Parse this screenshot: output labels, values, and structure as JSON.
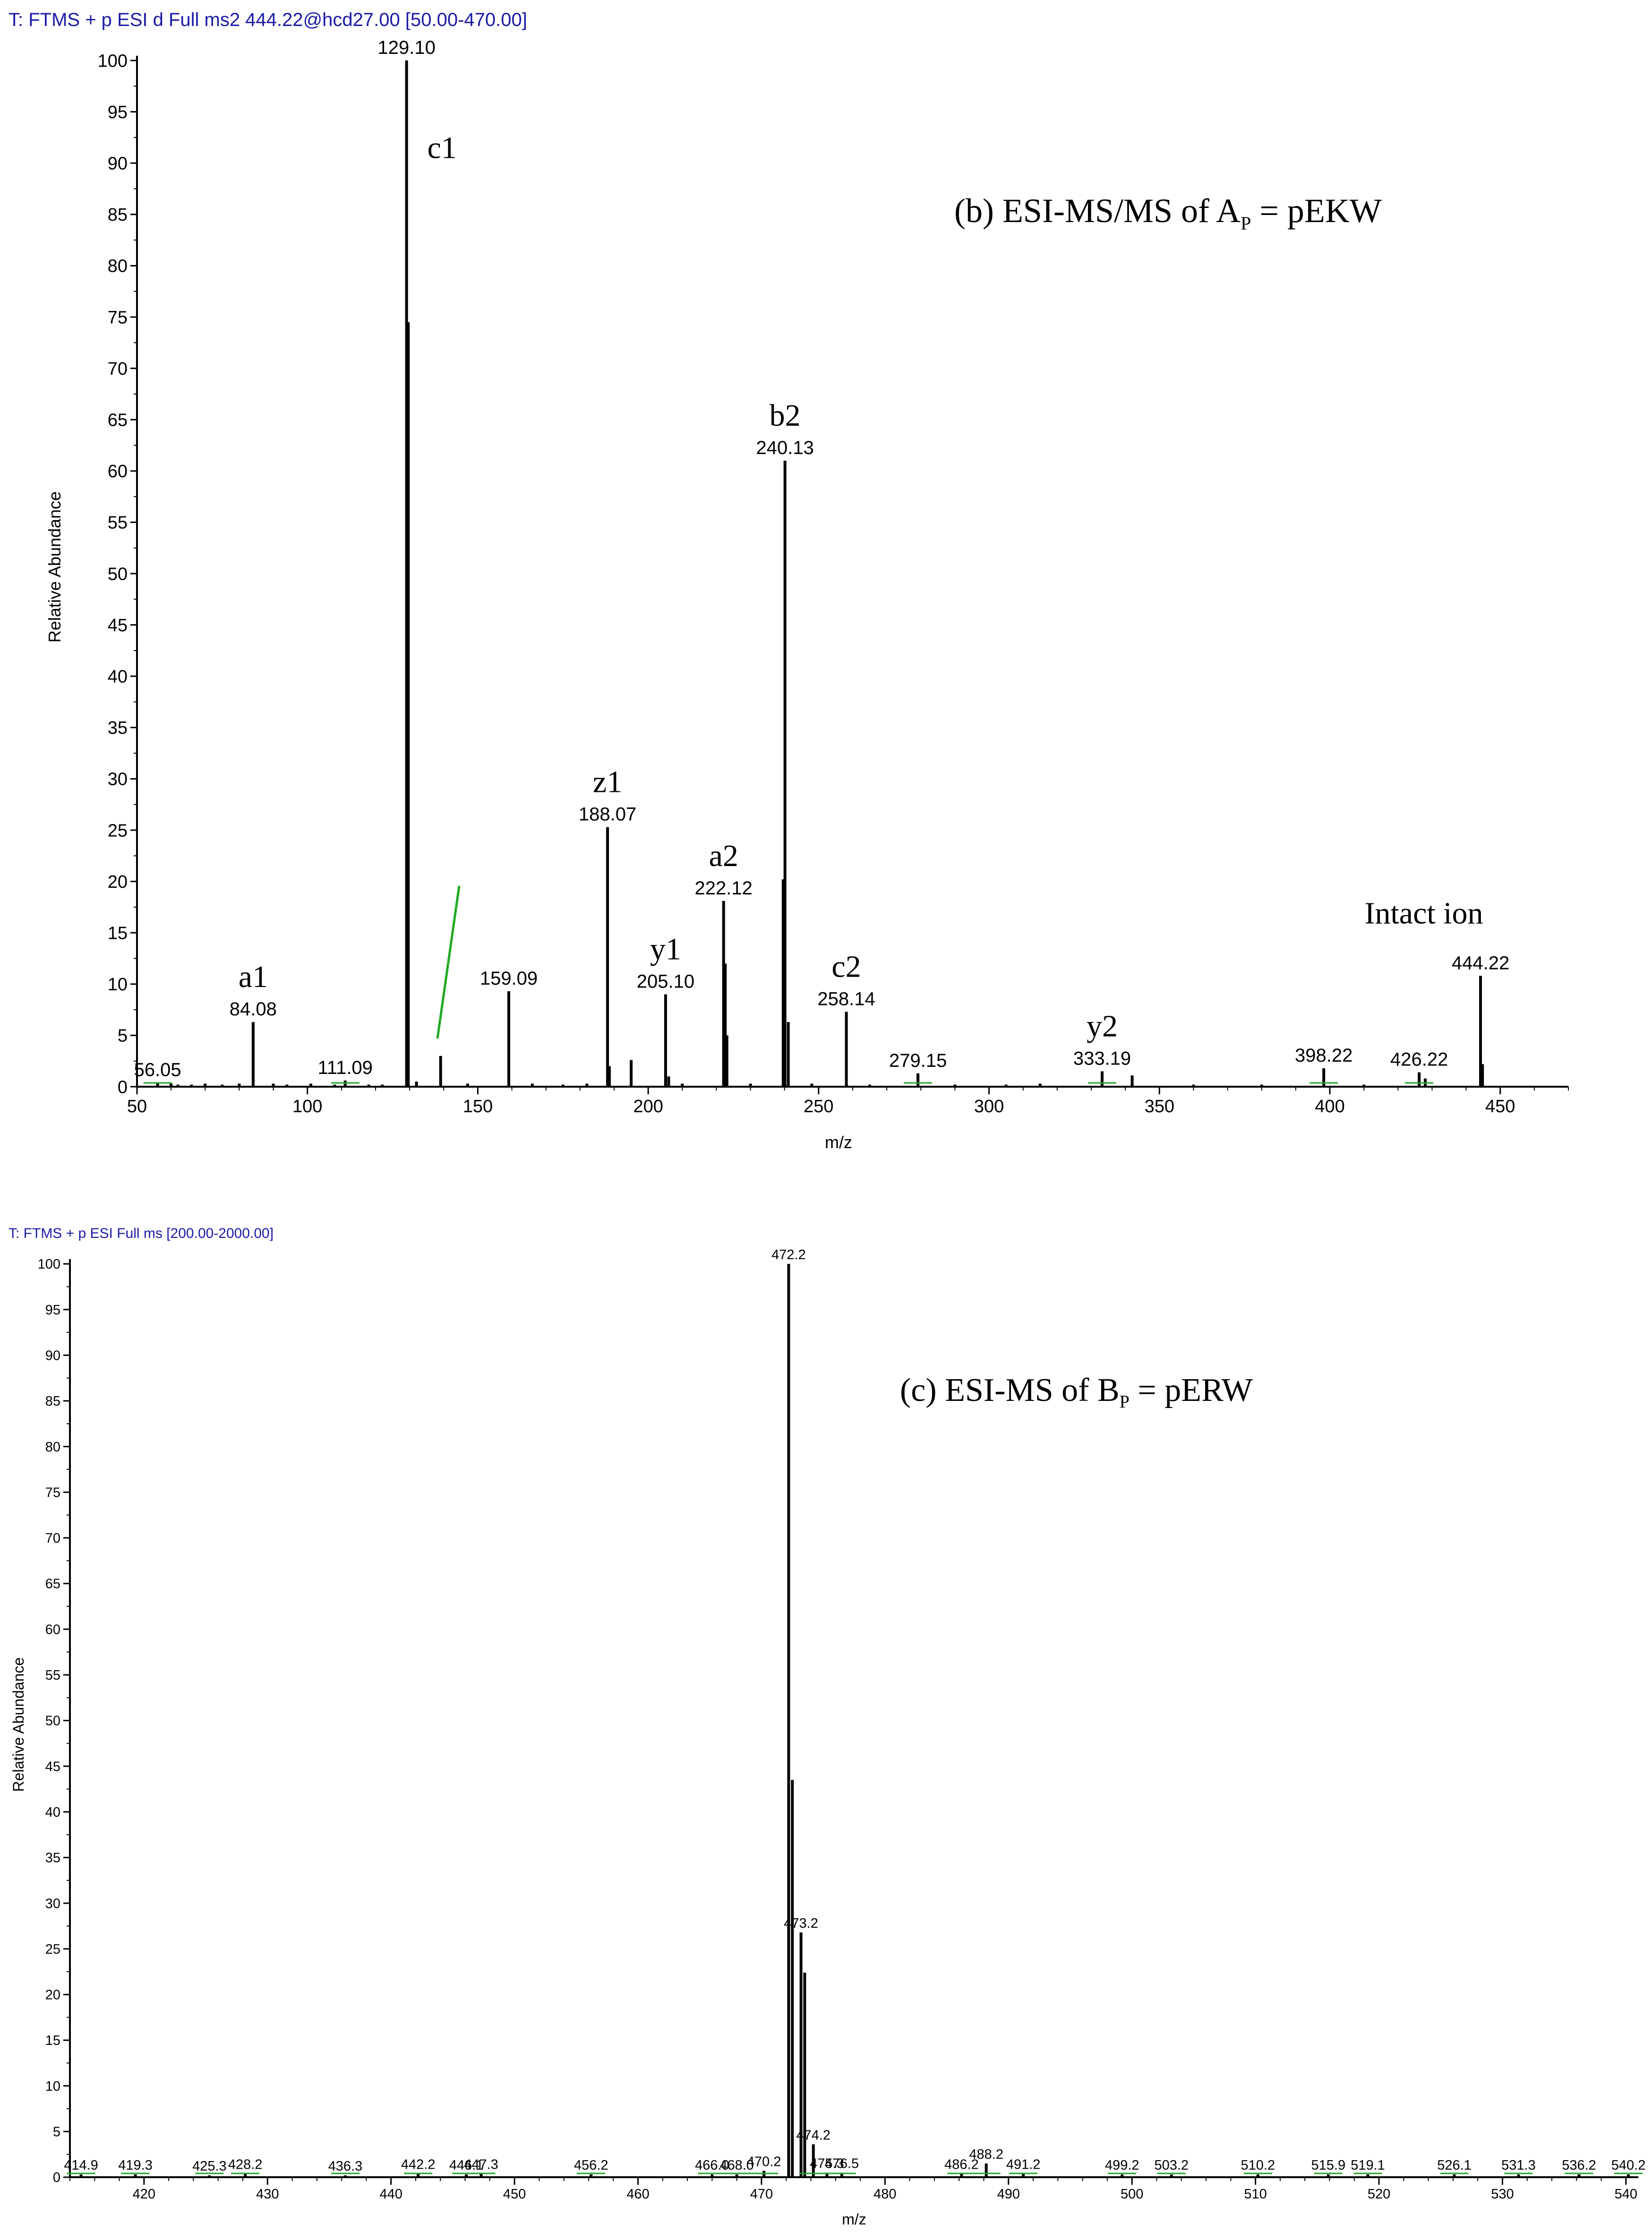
{
  "chart_data": [
    {
      "type": "bar",
      "header": "T: FTMS + p ESI d Full ms2 444.22@hcd27.00 [50.00-470.00]",
      "annotation": "(b) ESI-MS/MS of A",
      "annotation_sub": "P",
      "annotation_tail": " = pEKW",
      "xlabel": "m/z",
      "ylabel": "Relative Abundance",
      "xlim": [
        50,
        470
      ],
      "ylim": [
        0,
        100
      ],
      "xticks": [
        50,
        100,
        150,
        200,
        250,
        300,
        350,
        400,
        450
      ],
      "yticks": [
        0,
        5,
        10,
        15,
        20,
        25,
        30,
        35,
        40,
        45,
        50,
        55,
        60,
        65,
        70,
        75,
        80,
        85,
        90,
        95,
        100
      ],
      "peaks": [
        {
          "mz": 56.05,
          "y": 0.4,
          "label": "56.05"
        },
        {
          "mz": 60,
          "y": 0.3
        },
        {
          "mz": 62,
          "y": 0.2
        },
        {
          "mz": 66,
          "y": 0.2
        },
        {
          "mz": 70,
          "y": 0.3
        },
        {
          "mz": 75,
          "y": 0.2
        },
        {
          "mz": 80,
          "y": 0.3
        },
        {
          "mz": 84.08,
          "y": 6.3,
          "label": "84.08",
          "ion": "a1"
        },
        {
          "mz": 90,
          "y": 0.3
        },
        {
          "mz": 94,
          "y": 0.2
        },
        {
          "mz": 101,
          "y": 0.3
        },
        {
          "mz": 108,
          "y": 0.2
        },
        {
          "mz": 111.09,
          "y": 0.6,
          "label": "111.09"
        },
        {
          "mz": 118,
          "y": 0.2
        },
        {
          "mz": 122,
          "y": 0.2
        },
        {
          "mz": 129.1,
          "y": 100,
          "label": "129.10",
          "ion": "c1"
        },
        {
          "mz": 129.6,
          "y": 74.5
        },
        {
          "mz": 132,
          "y": 0.5
        },
        {
          "mz": 139.09,
          "y": 3.0
        },
        {
          "mz": 147,
          "y": 0.3
        },
        {
          "mz": 159.09,
          "y": 9.3,
          "label": "159.09"
        },
        {
          "mz": 166,
          "y": 0.3
        },
        {
          "mz": 175,
          "y": 0.2
        },
        {
          "mz": 182,
          "y": 0.3
        },
        {
          "mz": 188.07,
          "y": 25.3,
          "label": "188.07",
          "ion": "z1"
        },
        {
          "mz": 188.6,
          "y": 2.0
        },
        {
          "mz": 195,
          "y": 2.6
        },
        {
          "mz": 205.1,
          "y": 9.0,
          "label": "205.10",
          "ion": "y1"
        },
        {
          "mz": 206,
          "y": 1.0
        },
        {
          "mz": 210,
          "y": 0.3
        },
        {
          "mz": 222.12,
          "y": 18.1,
          "label": "222.12",
          "ion": "a2"
        },
        {
          "mz": 222.6,
          "y": 12.0
        },
        {
          "mz": 223.1,
          "y": 5.0
        },
        {
          "mz": 230,
          "y": 0.3
        },
        {
          "mz": 239.6,
          "y": 20.2
        },
        {
          "mz": 240.13,
          "y": 61.0,
          "label": "240.13",
          "ion": "b2"
        },
        {
          "mz": 241.1,
          "y": 6.3
        },
        {
          "mz": 248,
          "y": 0.3
        },
        {
          "mz": 258.14,
          "y": 7.3,
          "label": "258.14",
          "ion": "c2"
        },
        {
          "mz": 265,
          "y": 0.2
        },
        {
          "mz": 279.15,
          "y": 1.3,
          "label": "279.15"
        },
        {
          "mz": 290,
          "y": 0.2
        },
        {
          "mz": 305,
          "y": 0.2
        },
        {
          "mz": 315,
          "y": 0.3
        },
        {
          "mz": 333.19,
          "y": 1.5,
          "label": "333.19",
          "ion": "y2"
        },
        {
          "mz": 342,
          "y": 1.1
        },
        {
          "mz": 360,
          "y": 0.2
        },
        {
          "mz": 380,
          "y": 0.2
        },
        {
          "mz": 398.22,
          "y": 1.8,
          "label": "398.22"
        },
        {
          "mz": 410,
          "y": 0.2
        },
        {
          "mz": 426.22,
          "y": 1.4,
          "label": "426.22"
        },
        {
          "mz": 428,
          "y": 0.8
        },
        {
          "mz": 444.22,
          "y": 10.8,
          "label": "444.22",
          "ion": "Intact ion"
        },
        {
          "mz": 444.8,
          "y": 2.2
        }
      ]
    },
    {
      "type": "bar",
      "header": "T: FTMS + p ESI Full ms [200.00-2000.00]",
      "annotation": "(c) ESI-MS of B",
      "annotation_sub": "P",
      "annotation_tail": " = pERW",
      "xlabel": "m/z",
      "ylabel": "Relative Abundance",
      "xlim": [
        414,
        541
      ],
      "ylim": [
        0,
        100
      ],
      "xticks": [
        420,
        430,
        440,
        450,
        460,
        470,
        480,
        490,
        500,
        510,
        520,
        530,
        540
      ],
      "yticks": [
        0,
        5,
        10,
        15,
        20,
        25,
        30,
        35,
        40,
        45,
        50,
        55,
        60,
        65,
        70,
        75,
        80,
        85,
        90,
        95,
        100
      ],
      "peaks": [
        {
          "mz": 414.9,
          "y": 0.3,
          "label": "414.9"
        },
        {
          "mz": 419.3,
          "y": 0.3,
          "label": "419.3"
        },
        {
          "mz": 425.3,
          "y": 0.2,
          "label": "425.3"
        },
        {
          "mz": 428.2,
          "y": 0.4,
          "label": "428.2"
        },
        {
          "mz": 436.3,
          "y": 0.2,
          "label": "436.3"
        },
        {
          "mz": 442.2,
          "y": 0.4,
          "label": "442.2"
        },
        {
          "mz": 446.1,
          "y": 0.3,
          "label": "446.1"
        },
        {
          "mz": 447.3,
          "y": 0.4,
          "label": "447.3"
        },
        {
          "mz": 456.2,
          "y": 0.3,
          "label": "456.2"
        },
        {
          "mz": 466.0,
          "y": 0.3,
          "label": "466.0"
        },
        {
          "mz": 468.0,
          "y": 0.3,
          "label": "468.0"
        },
        {
          "mz": 470.2,
          "y": 0.7,
          "label": "470.2"
        },
        {
          "mz": 472.2,
          "y": 100,
          "label": "472.2"
        },
        {
          "mz": 472.5,
          "y": 43.5
        },
        {
          "mz": 473.2,
          "y": 26.8,
          "label": "473.2"
        },
        {
          "mz": 473.5,
          "y": 22.4
        },
        {
          "mz": 474.2,
          "y": 3.6,
          "label": "474.2"
        },
        {
          "mz": 475.3,
          "y": 0.5,
          "label": "475.3"
        },
        {
          "mz": 476.5,
          "y": 0.5,
          "label": "476.5"
        },
        {
          "mz": 486.2,
          "y": 0.4,
          "label": "486.2"
        },
        {
          "mz": 488.2,
          "y": 1.5,
          "label": "488.2"
        },
        {
          "mz": 491.2,
          "y": 0.4,
          "label": "491.2"
        },
        {
          "mz": 499.2,
          "y": 0.3,
          "label": "499.2"
        },
        {
          "mz": 503.2,
          "y": 0.3,
          "label": "503.2"
        },
        {
          "mz": 510.2,
          "y": 0.3,
          "label": "510.2"
        },
        {
          "mz": 515.9,
          "y": 0.3,
          "label": "515.9"
        },
        {
          "mz": 519.1,
          "y": 0.3,
          "label": "519.1"
        },
        {
          "mz": 526.1,
          "y": 0.3,
          "label": "526.1"
        },
        {
          "mz": 531.3,
          "y": 0.3,
          "label": "531.3"
        },
        {
          "mz": 536.2,
          "y": 0.3,
          "label": "536.2"
        },
        {
          "mz": 540.2,
          "y": 0.3,
          "label": "540.2"
        }
      ]
    }
  ]
}
